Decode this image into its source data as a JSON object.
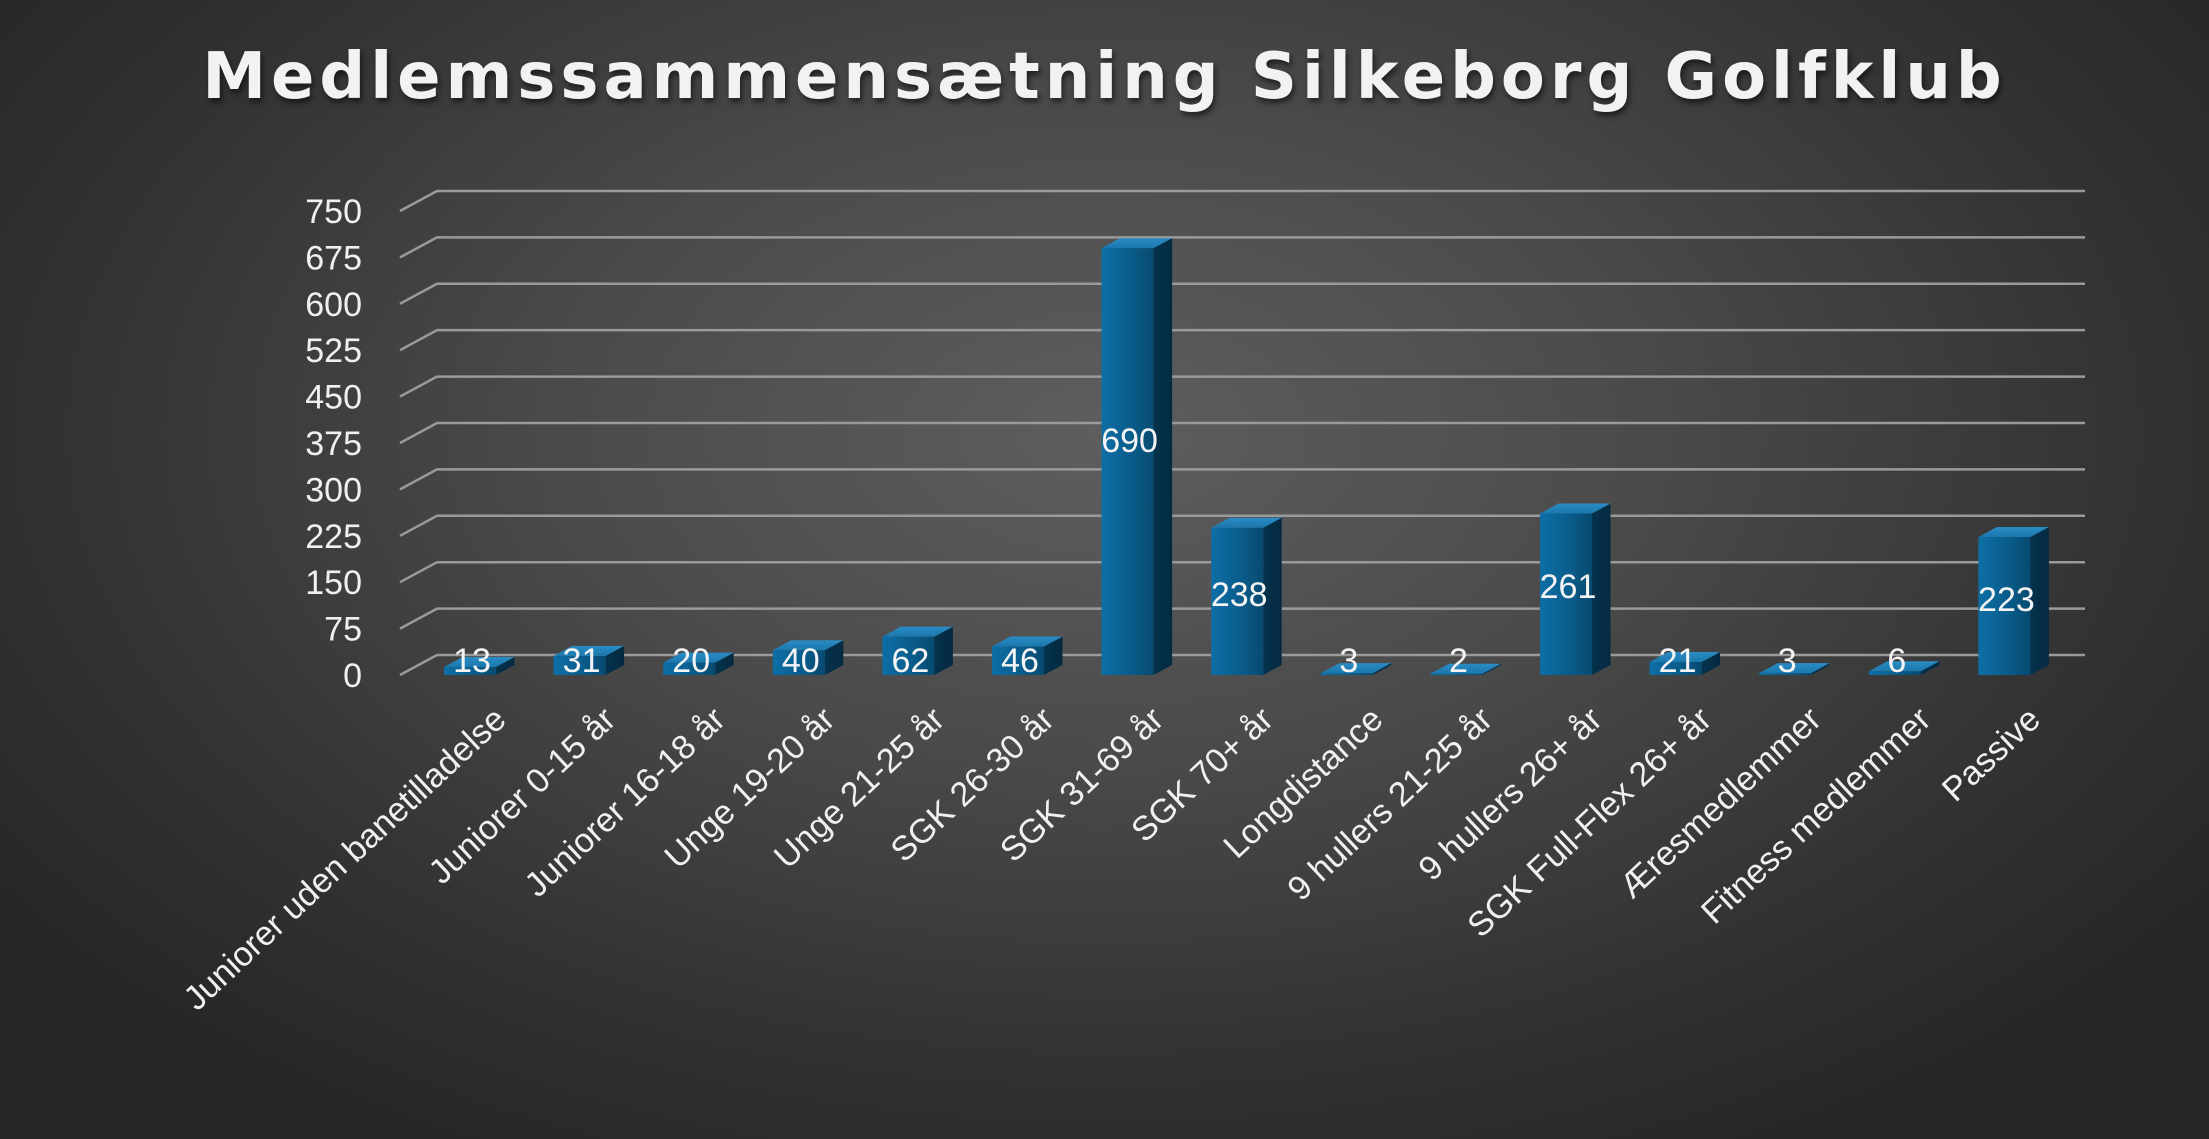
{
  "chart_data": {
    "type": "bar",
    "title": "Medlemssammensætning Silkeborg Golfklub",
    "categories": [
      "Juniorer uden banetilladelse",
      "Juniorer 0-15 år",
      "Juniorer 16-18 år",
      "Unge 19-20 år",
      "Unge 21-25 år",
      "SGK 26-30 år",
      "SGK 31-69 år",
      "SGK 70+ år",
      "Longdistance",
      "9 hullers 21-25 år",
      "9 hullers 26+ år",
      "SGK Full-Flex 26+ år",
      "Æresmedlemmer",
      "Fitness medlemmer",
      "Passive"
    ],
    "values": [
      13,
      31,
      20,
      40,
      62,
      46,
      690,
      238,
      3,
      2,
      261,
      21,
      3,
      6,
      223
    ],
    "yticks": [
      "0",
      "75",
      "150",
      "225",
      "300",
      "375",
      "450",
      "525",
      "600",
      "675",
      "750"
    ],
    "ylim": [
      0,
      750
    ],
    "xlabel": "",
    "ylabel": "",
    "grid": true,
    "data_labels": true,
    "bar_color": "#0b5f8f",
    "grid_color": "#9a9a9a",
    "text_color": "#f0f0f0"
  }
}
